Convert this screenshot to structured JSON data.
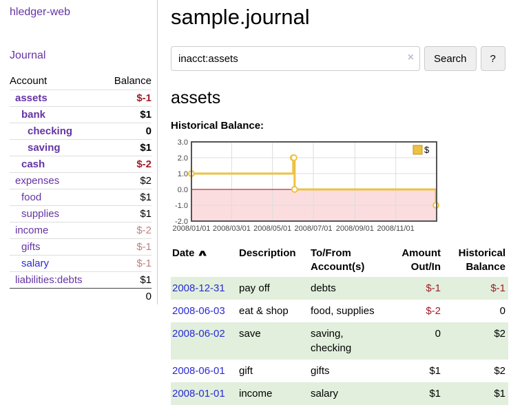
{
  "sidebar": {
    "brand": "hledger-web",
    "journal_link": "Journal",
    "accounts_table": {
      "headers": {
        "account": "Account",
        "balance": "Balance"
      },
      "rows": [
        {
          "name": "assets",
          "balance": "$-1"
        },
        {
          "name": "bank",
          "balance": "$1"
        },
        {
          "name": "checking",
          "balance": "0"
        },
        {
          "name": "saving",
          "balance": "$1"
        },
        {
          "name": "cash",
          "balance": "$-2"
        },
        {
          "name": "expenses",
          "balance": "$2"
        },
        {
          "name": "food",
          "balance": "$1"
        },
        {
          "name": "supplies",
          "balance": "$1"
        },
        {
          "name": "income",
          "balance": "$-2"
        },
        {
          "name": "gifts",
          "balance": "$-1"
        },
        {
          "name": "salary",
          "balance": "$-1"
        },
        {
          "name": "liabilities:debts",
          "balance": "$1"
        }
      ],
      "total": "0"
    }
  },
  "main": {
    "title": "sample.journal",
    "search": {
      "value": "inacct:assets",
      "clear_icon": "×",
      "search_button": "Search",
      "help_button": "?"
    },
    "account_heading": "assets",
    "chart_label": "Historical Balance:",
    "register": {
      "headers": {
        "date": "Date",
        "description": "Description",
        "account": "To/From Account(s)",
        "amount": "Amount Out/In",
        "balance": "Historical Balance"
      },
      "rows": [
        {
          "date": "2008-12-31",
          "description": "pay off",
          "account": "debts",
          "amount": "$-1",
          "balance": "$-1"
        },
        {
          "date": "2008-06-03",
          "description": "eat & shop",
          "account": "food, supplies",
          "amount": "$-2",
          "balance": "0"
        },
        {
          "date": "2008-06-02",
          "description": "save",
          "account": "saving, checking",
          "amount": "0",
          "balance": "$2"
        },
        {
          "date": "2008-06-01",
          "description": "gift",
          "account": "gifts",
          "amount": "$1",
          "balance": "$2"
        },
        {
          "date": "2008-01-01",
          "description": "income",
          "account": "salary",
          "amount": "$1",
          "balance": "$1"
        }
      ]
    }
  },
  "chart_data": {
    "type": "line",
    "step": true,
    "title": "Historical Balance",
    "x_range": [
      "2008-01-01",
      "2009-01-01"
    ],
    "ylim": [
      -2,
      3
    ],
    "y_ticks": [
      3,
      2,
      1,
      0,
      -1,
      -2
    ],
    "x_ticks": [
      "2008/01/01",
      "2008/03/01",
      "2008/05/01",
      "2008/07/01",
      "2008/09/01",
      "2008/11/01"
    ],
    "series": [
      {
        "name": "$",
        "color": "#edc240",
        "points": [
          {
            "date": "2008-01-01",
            "value": 1
          },
          {
            "date": "2008-06-01",
            "value": 2
          },
          {
            "date": "2008-06-02",
            "value": 2
          },
          {
            "date": "2008-06-03",
            "value": 0
          },
          {
            "date": "2008-12-31",
            "value": -1
          }
        ]
      }
    ],
    "colors": {
      "negative_region": "#fbdde0",
      "zero_line": "#aa0000",
      "grid": "#dcdcdc",
      "border": "#545454",
      "tick_label": "#444444"
    },
    "legend_position": "top-right"
  }
}
